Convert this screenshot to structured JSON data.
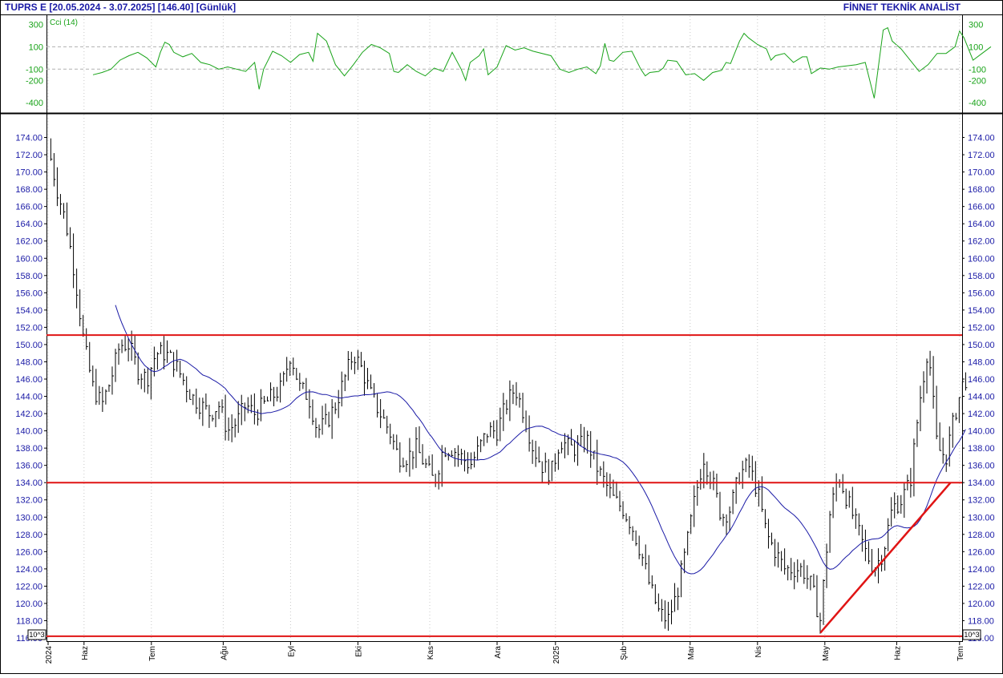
{
  "header": {
    "left": "TUPRS E  [20.05.2024 - 3.07.2025]  [146.40]  [Günlük]",
    "right": "FİNNET TEKNİK ANALİST"
  },
  "colors": {
    "axis_text": "#1a1aa6",
    "cci_text": "#19a319",
    "cci_line": "#19a319",
    "price_bars": "#000000",
    "moving_average": "#1a1aa6",
    "support_resistance": "#e01414",
    "grid": "#b0b0b0"
  },
  "chart_data": [
    {
      "type": "line",
      "name": "cci",
      "legend": "Cci (14)",
      "yticks": [
        300,
        100,
        -100,
        -200,
        -400
      ],
      "ylim": [
        -470,
        360
      ],
      "grid_lines": [
        100,
        -100
      ],
      "x_range": [
        0,
        100
      ],
      "series": [
        {
          "values": [
            [
              5,
              -150
            ],
            [
              6,
              -130
            ],
            [
              7,
              -100
            ],
            [
              7.5,
              -60
            ],
            [
              8,
              -20
            ],
            [
              9,
              20
            ],
            [
              10,
              50
            ],
            [
              11,
              0
            ],
            [
              12,
              -80
            ],
            [
              12.5,
              50
            ],
            [
              13,
              140
            ],
            [
              13.5,
              120
            ],
            [
              14,
              50
            ],
            [
              15,
              10
            ],
            [
              16,
              40
            ],
            [
              17,
              -40
            ],
            [
              18,
              -60
            ],
            [
              19,
              -100
            ],
            [
              20,
              -80
            ],
            [
              21,
              -100
            ],
            [
              22,
              -120
            ],
            [
              23,
              -40
            ],
            [
              23.5,
              -280
            ],
            [
              24,
              -100
            ],
            [
              25,
              60
            ],
            [
              26,
              20
            ],
            [
              27,
              -40
            ],
            [
              28,
              30
            ],
            [
              29,
              50
            ],
            [
              29.5,
              -30
            ],
            [
              30,
              220
            ],
            [
              31,
              150
            ],
            [
              32,
              -60
            ],
            [
              33,
              -160
            ],
            [
              34,
              -60
            ],
            [
              35,
              50
            ],
            [
              36,
              120
            ],
            [
              37,
              90
            ],
            [
              38,
              40
            ],
            [
              38.5,
              -120
            ],
            [
              39,
              -130
            ],
            [
              40,
              -60
            ],
            [
              41,
              -120
            ],
            [
              42,
              -160
            ],
            [
              43,
              -90
            ],
            [
              44,
              -120
            ],
            [
              45,
              50
            ],
            [
              46,
              -100
            ],
            [
              46.5,
              -200
            ],
            [
              47,
              -40
            ],
            [
              48,
              20
            ],
            [
              48.5,
              80
            ],
            [
              49,
              -150
            ],
            [
              50,
              -80
            ],
            [
              51,
              110
            ],
            [
              52,
              70
            ],
            [
              53,
              90
            ],
            [
              54,
              60
            ],
            [
              56,
              20
            ],
            [
              57,
              -100
            ],
            [
              58,
              -130
            ],
            [
              59,
              -100
            ],
            [
              60,
              -80
            ],
            [
              61,
              -140
            ],
            [
              61.5,
              -70
            ],
            [
              62,
              130
            ],
            [
              62.5,
              -20
            ],
            [
              63,
              -30
            ],
            [
              64,
              50
            ],
            [
              65,
              60
            ],
            [
              66,
              -100
            ],
            [
              66.5,
              -160
            ],
            [
              67,
              -130
            ],
            [
              68,
              -120
            ],
            [
              68.5,
              -90
            ],
            [
              69,
              -20
            ],
            [
              70,
              -30
            ],
            [
              71,
              -150
            ],
            [
              72,
              -140
            ],
            [
              73,
              -200
            ],
            [
              74,
              -130
            ],
            [
              75,
              -110
            ],
            [
              75.5,
              -40
            ],
            [
              76,
              -50
            ],
            [
              77,
              150
            ],
            [
              77.5,
              220
            ],
            [
              78,
              180
            ],
            [
              79,
              120
            ],
            [
              80,
              80
            ],
            [
              80.5,
              -20
            ],
            [
              81,
              20
            ],
            [
              82,
              40
            ],
            [
              83,
              -40
            ],
            [
              84,
              10
            ],
            [
              84.5,
              10
            ],
            [
              85,
              -140
            ],
            [
              86,
              -90
            ],
            [
              87,
              -100
            ],
            [
              88,
              -80
            ],
            [
              89,
              -70
            ],
            [
              90,
              -60
            ],
            [
              91,
              -40
            ],
            [
              91.5,
              -200
            ],
            [
              92,
              -360
            ],
            [
              93,
              250
            ],
            [
              93.5,
              270
            ],
            [
              94,
              150
            ],
            [
              95,
              80
            ],
            [
              96,
              -20
            ],
            [
              97,
              -120
            ],
            [
              98,
              -60
            ],
            [
              99,
              40
            ],
            [
              100,
              40
            ],
            [
              101,
              100
            ],
            [
              101.5,
              240
            ],
            [
              102,
              180
            ],
            [
              103,
              -20
            ],
            [
              104,
              40
            ],
            [
              105,
              100
            ]
          ]
        }
      ]
    },
    {
      "type": "bar",
      "name": "price",
      "yticks": [
        174,
        172,
        170,
        168,
        166,
        164,
        162,
        160,
        158,
        156,
        154,
        152,
        150,
        148,
        146,
        144,
        142,
        140,
        138,
        136,
        134,
        132,
        130,
        128,
        126,
        124,
        122,
        120,
        118,
        116
      ],
      "ylim": [
        116,
        176
      ],
      "x_range": [
        0,
        100
      ],
      "xticks": [
        {
          "pos": 0,
          "label": "2024"
        },
        {
          "pos": 4,
          "label": "Haz"
        },
        {
          "pos": 11.5,
          "label": "Tem"
        },
        {
          "pos": 19.5,
          "label": "Ağu"
        },
        {
          "pos": 27,
          "label": "Eyl"
        },
        {
          "pos": 34.5,
          "label": "Eki"
        },
        {
          "pos": 42.5,
          "label": "Kas"
        },
        {
          "pos": 50,
          "label": "Ara"
        },
        {
          "pos": 56.5,
          "label": "2025"
        },
        {
          "pos": 64,
          "label": "Şub"
        },
        {
          "pos": 71.5,
          "label": "Mar"
        },
        {
          "pos": 79,
          "label": "Nis"
        },
        {
          "pos": 86.5,
          "label": "May"
        },
        {
          "pos": 94.5,
          "label": "Haz"
        },
        {
          "pos": 101.5,
          "label": "Tem"
        }
      ],
      "horizontal_levels": [
        151.1,
        134.0,
        116.2
      ],
      "trendline": [
        [
          86,
          116.6
        ],
        [
          100.5,
          134.0
        ]
      ],
      "ohlc_anchor": [
        [
          0,
          173
        ],
        [
          1,
          168
        ],
        [
          2,
          164
        ],
        [
          3,
          158
        ],
        [
          4,
          150
        ],
        [
          5,
          145
        ],
        [
          6,
          143
        ],
        [
          7,
          146
        ],
        [
          8,
          150
        ],
        [
          9,
          150
        ],
        [
          10,
          147
        ],
        [
          11,
          146
        ],
        [
          12,
          149
        ],
        [
          13,
          149
        ],
        [
          14,
          148
        ],
        [
          15,
          146
        ],
        [
          16,
          144
        ],
        [
          17,
          143
        ],
        [
          18,
          142
        ],
        [
          19,
          143
        ],
        [
          20,
          140
        ],
        [
          21,
          141
        ],
        [
          22,
          143
        ],
        [
          23,
          142
        ],
        [
          24,
          143
        ],
        [
          25,
          144
        ],
        [
          26,
          145
        ],
        [
          27,
          149
        ],
        [
          28,
          145
        ],
        [
          29,
          144
        ],
        [
          30,
          140
        ],
        [
          31,
          141
        ],
        [
          32,
          143
        ],
        [
          33,
          146
        ],
        [
          34,
          149
        ],
        [
          35,
          147
        ],
        [
          36,
          144
        ],
        [
          37,
          142
        ],
        [
          38,
          140
        ],
        [
          39,
          137
        ],
        [
          40,
          137
        ],
        [
          41,
          138
        ],
        [
          42,
          136
        ],
        [
          43,
          134
        ],
        [
          44,
          138
        ],
        [
          45,
          138
        ],
        [
          46,
          137
        ],
        [
          47,
          136
        ],
        [
          48,
          138
        ],
        [
          49,
          140
        ],
        [
          50,
          140
        ],
        [
          51,
          143
        ],
        [
          52,
          145
        ],
        [
          53,
          142
        ],
        [
          54,
          138
        ],
        [
          55,
          136
        ],
        [
          56,
          135
        ],
        [
          57,
          139
        ],
        [
          58,
          138
        ],
        [
          59,
          138
        ],
        [
          60,
          139
        ],
        [
          61,
          136
        ],
        [
          62,
          134
        ],
        [
          63,
          132
        ],
        [
          64,
          131
        ],
        [
          65,
          129
        ],
        [
          66,
          126
        ],
        [
          67,
          122
        ],
        [
          68,
          119
        ],
        [
          69,
          118
        ],
        [
          70,
          121
        ],
        [
          71,
          126
        ],
        [
          72,
          132
        ],
        [
          73,
          137
        ],
        [
          74,
          134
        ],
        [
          75,
          130
        ],
        [
          76,
          131
        ],
        [
          77,
          135
        ],
        [
          78,
          136
        ],
        [
          79,
          133
        ],
        [
          80,
          128
        ],
        [
          81,
          126
        ],
        [
          82,
          124
        ],
        [
          83,
          124
        ],
        [
          84,
          124
        ],
        [
          85,
          122
        ],
        [
          86,
          118
        ],
        [
          87,
          130
        ],
        [
          88,
          135
        ],
        [
          89,
          132
        ],
        [
          90,
          129
        ],
        [
          91,
          126
        ],
        [
          92,
          124
        ],
        [
          93,
          126
        ],
        [
          94,
          131
        ],
        [
          95,
          132
        ],
        [
          96,
          134
        ],
        [
          97,
          143
        ],
        [
          98,
          150
        ],
        [
          99,
          138
        ],
        [
          100,
          137
        ],
        [
          101,
          142
        ],
        [
          102,
          146
        ]
      ]
    }
  ],
  "scale_badges": {
    "left": "10^3",
    "right": "10^3"
  }
}
